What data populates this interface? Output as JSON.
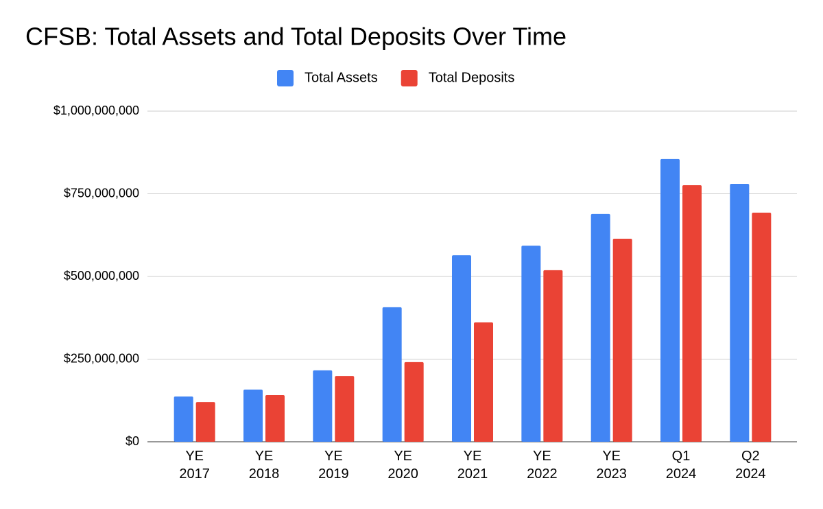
{
  "chart_data": {
    "type": "bar",
    "title": "CFSB: Total Assets and Total Deposits Over Time",
    "categories": [
      "YE 2017",
      "YE 2018",
      "YE 2019",
      "YE 2020",
      "YE 2021",
      "YE 2022",
      "YE 2023",
      "Q1 2024",
      "Q2 2024"
    ],
    "series": [
      {
        "name": "Total Assets",
        "color": "#4285f4",
        "values": [
          137000000,
          158000000,
          216000000,
          407000000,
          564000000,
          593000000,
          689000000,
          855000000,
          780000000
        ]
      },
      {
        "name": "Total Deposits",
        "color": "#ea4335",
        "values": [
          120000000,
          141000000,
          199000000,
          241000000,
          361000000,
          519000000,
          614000000,
          776000000,
          693000000
        ]
      }
    ],
    "ylim": [
      0,
      1000000000
    ],
    "yticks": [
      {
        "value": 0,
        "label": "$0"
      },
      {
        "value": 250000000,
        "label": "$250,000,000"
      },
      {
        "value": 500000000,
        "label": "$500,000,000"
      },
      {
        "value": 750000000,
        "label": "$750,000,000"
      },
      {
        "value": 1000000000,
        "label": "$1,000,000,000"
      }
    ],
    "grid": true,
    "legend": "top"
  }
}
